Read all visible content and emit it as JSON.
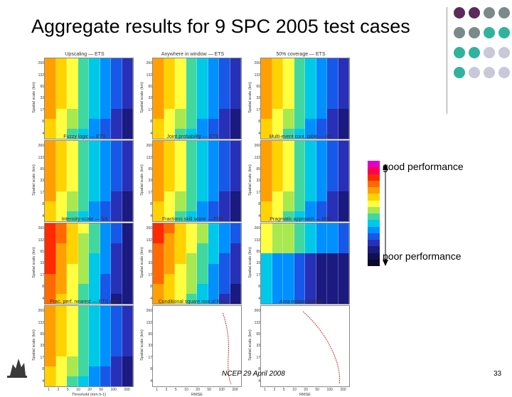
{
  "slide": {
    "title": "Aggregate results for 9 SPC 2005 test cases",
    "good_label": "good performance",
    "poor_label": "poor performance",
    "footer": "NCEP 29 April 2008",
    "page_number": "33"
  },
  "colors": {
    "dots": [
      "#5b2a5c",
      "#7a8a8a",
      "#2fb39c",
      "#c8c8d8"
    ],
    "legend_scale": [
      "#e000c8",
      "#ff0050",
      "#ff2a00",
      "#ff6a00",
      "#ffa000",
      "#ffd200",
      "#ffff40",
      "#a8e850",
      "#40d8a0",
      "#00c8e8",
      "#0090ff",
      "#1858e8",
      "#2830b8",
      "#1a1a80",
      "#101050",
      "#0a0a28"
    ]
  },
  "axes": {
    "y_ticks": [
      "260",
      "132",
      "65",
      "33",
      "17",
      "8",
      "4"
    ],
    "x_ticks": [
      "1",
      "2",
      "5",
      "10",
      "20",
      "50",
      "100",
      "200"
    ],
    "y_label": "Spatial scale (km)",
    "x_label": "Threshold (mm h-1)"
  },
  "panels": [
    {
      "title": "Upscaling — ETS"
    },
    {
      "title": "Anywhere in window — ETS"
    },
    {
      "title": "50% coverage — ETS"
    },
    {
      "title": "Fuzzy logic — ETS"
    },
    {
      "title": "Joint probability — ETS"
    },
    {
      "title": "Multi-event cont. table — HK"
    },
    {
      "title": "Intensity-scale — SS"
    },
    {
      "title": "Fractions skill score — FSS"
    },
    {
      "title": "Pragmatic approach — BSS"
    },
    {
      "title": "Prac. perf. nearest — ETS ratio"
    },
    {
      "title": "Conditional square root of RPS"
    },
    {
      "title": "Area related RMSE"
    }
  ],
  "line_panels": {
    "left_xlabel": "RMSE",
    "right_xlabel": "RMSE"
  }
}
